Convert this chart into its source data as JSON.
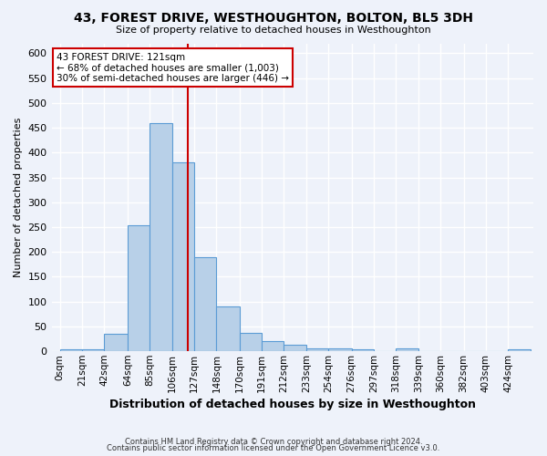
{
  "title": "43, FOREST DRIVE, WESTHOUGHTON, BOLTON, BL5 3DH",
  "subtitle": "Size of property relative to detached houses in Westhoughton",
  "xlabel": "Distribution of detached houses by size in Westhoughton",
  "ylabel": "Number of detached properties",
  "categories": [
    "0sqm",
    "21sqm",
    "42sqm",
    "64sqm",
    "85sqm",
    "106sqm",
    "127sqm",
    "148sqm",
    "170sqm",
    "191sqm",
    "212sqm",
    "233sqm",
    "254sqm",
    "276sqm",
    "297sqm",
    "318sqm",
    "339sqm",
    "360sqm",
    "382sqm",
    "403sqm",
    "424sqm"
  ],
  "values": [
    4,
    4,
    35,
    253,
    460,
    380,
    190,
    90,
    37,
    20,
    13,
    5,
    5,
    4,
    0,
    5,
    0,
    0,
    0,
    0,
    4
  ],
  "x_positions": [
    0,
    21,
    42,
    64,
    85,
    106,
    127,
    148,
    170,
    191,
    212,
    233,
    254,
    276,
    297,
    318,
    339,
    360,
    382,
    403,
    424
  ],
  "bar_color": "#b8d0e8",
  "bar_edge_color": "#5b9bd5",
  "vline_x": 121,
  "vline_color": "#cc0000",
  "annotation_text": "43 FOREST DRIVE: 121sqm\n← 68% of detached houses are smaller (1,003)\n30% of semi-detached houses are larger (446) →",
  "annotation_box_color": "white",
  "annotation_box_edge": "#cc0000",
  "ylim": [
    0,
    620
  ],
  "yticks": [
    0,
    50,
    100,
    150,
    200,
    250,
    300,
    350,
    400,
    450,
    500,
    550,
    600
  ],
  "footnote1": "Contains HM Land Registry data © Crown copyright and database right 2024.",
  "footnote2": "Contains public sector information licensed under the Open Government Licence v3.0.",
  "background_color": "#eef2fa",
  "grid_color": "white"
}
